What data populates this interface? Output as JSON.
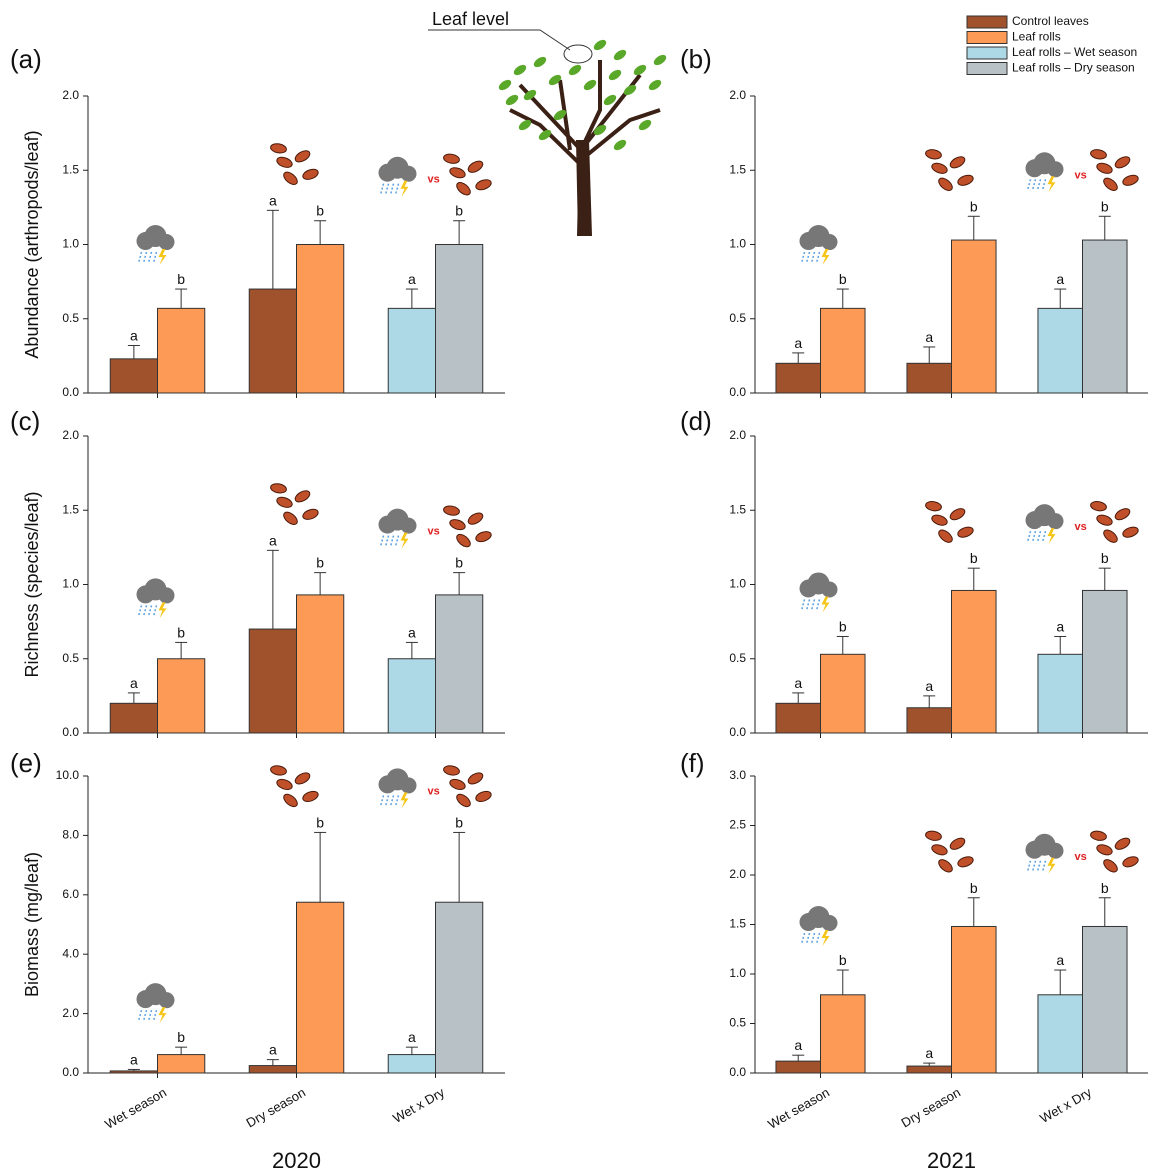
{
  "figure_annotation": "Leaf level",
  "comparison_text": "vs",
  "legend": [
    {
      "name": "Control leaves",
      "color": "#a0522d"
    },
    {
      "name": "Leaf rolls",
      "color": "#fd9a55"
    },
    {
      "name": "Leaf rolls – Wet season",
      "color": "#add8e6"
    },
    {
      "name": "Leaf rolls – Dry season",
      "color": "#b8c2c6"
    }
  ],
  "chart_data": [
    {
      "type": "bar",
      "panel_label": "(a)",
      "ylabel": "Abundance (arthropods/leaf)",
      "categories": [
        null,
        null,
        null
      ],
      "ylim": [
        0,
        2
      ],
      "yticks": [
        {
          "value": 0,
          "label": "0.0"
        },
        {
          "value": 0.5,
          "label": "0.5"
        },
        {
          "value": 1,
          "label": "1.0"
        },
        {
          "value": 1.5,
          "label": "1.5"
        },
        {
          "value": 2,
          "label": "2.0"
        }
      ],
      "series": [
        {
          "values": [
            0.23,
            0.7,
            null
          ],
          "errors": [
            0.09,
            0.53,
            null
          ],
          "letters": [
            "a",
            "a",
            null
          ]
        },
        {
          "values": [
            0.57,
            1.0,
            null
          ],
          "errors": [
            0.13,
            0.16,
            null
          ],
          "letters": [
            "b",
            "b",
            null
          ]
        },
        {
          "values": [
            null,
            null,
            0.57
          ],
          "errors": [
            null,
            null,
            0.13
          ],
          "letters": [
            null,
            null,
            "a"
          ]
        },
        {
          "values": [
            null,
            null,
            1.0
          ],
          "errors": [
            null,
            null,
            0.16
          ],
          "letters": [
            null,
            null,
            "b"
          ]
        }
      ]
    },
    {
      "type": "bar",
      "panel_label": "(b)",
      "categories": [
        null,
        null,
        null
      ],
      "ylim": [
        0,
        2
      ],
      "yticks": [
        {
          "value": 0,
          "label": "0.0"
        },
        {
          "value": 0.5,
          "label": "0.5"
        },
        {
          "value": 1,
          "label": "1.0"
        },
        {
          "value": 1.5,
          "label": "1.5"
        },
        {
          "value": 2,
          "label": "2.0"
        }
      ],
      "series": [
        {
          "values": [
            0.2,
            0.2,
            null
          ],
          "errors": [
            0.07,
            0.11,
            null
          ],
          "letters": [
            "a",
            "a",
            null
          ]
        },
        {
          "values": [
            0.57,
            1.03,
            null
          ],
          "errors": [
            0.13,
            0.16,
            null
          ],
          "letters": [
            "b",
            "b",
            null
          ]
        },
        {
          "values": [
            null,
            null,
            0.57
          ],
          "errors": [
            null,
            null,
            0.13
          ],
          "letters": [
            null,
            null,
            "a"
          ]
        },
        {
          "values": [
            null,
            null,
            1.03
          ],
          "errors": [
            null,
            null,
            0.16
          ],
          "letters": [
            null,
            null,
            "b"
          ]
        }
      ]
    },
    {
      "type": "bar",
      "panel_label": "(c)",
      "ylabel": "Richness (species/leaf)",
      "categories": [
        null,
        null,
        null
      ],
      "ylim": [
        0,
        2
      ],
      "yticks": [
        {
          "value": 0,
          "label": "0.0"
        },
        {
          "value": 0.5,
          "label": "0.5"
        },
        {
          "value": 1,
          "label": "1.0"
        },
        {
          "value": 1.5,
          "label": "1.5"
        },
        {
          "value": 2,
          "label": "2.0"
        }
      ],
      "series": [
        {
          "values": [
            0.2,
            0.7,
            null
          ],
          "errors": [
            0.07,
            0.53,
            null
          ],
          "letters": [
            "a",
            "a",
            null
          ]
        },
        {
          "values": [
            0.5,
            0.93,
            null
          ],
          "errors": [
            0.11,
            0.15,
            null
          ],
          "letters": [
            "b",
            "b",
            null
          ]
        },
        {
          "values": [
            null,
            null,
            0.5
          ],
          "errors": [
            null,
            null,
            0.11
          ],
          "letters": [
            null,
            null,
            "a"
          ]
        },
        {
          "values": [
            null,
            null,
            0.93
          ],
          "errors": [
            null,
            null,
            0.15
          ],
          "letters": [
            null,
            null,
            "b"
          ]
        }
      ]
    },
    {
      "type": "bar",
      "panel_label": "(d)",
      "categories": [
        null,
        null,
        null
      ],
      "ylim": [
        0,
        2
      ],
      "yticks": [
        {
          "value": 0,
          "label": "0.0"
        },
        {
          "value": 0.5,
          "label": "0.5"
        },
        {
          "value": 1,
          "label": "1.0"
        },
        {
          "value": 1.5,
          "label": "1.5"
        },
        {
          "value": 2,
          "label": "2.0"
        }
      ],
      "series": [
        {
          "values": [
            0.2,
            0.17,
            null
          ],
          "errors": [
            0.07,
            0.08,
            null
          ],
          "letters": [
            "a",
            "a",
            null
          ]
        },
        {
          "values": [
            0.53,
            0.96,
            null
          ],
          "errors": [
            0.12,
            0.15,
            null
          ],
          "letters": [
            "b",
            "b",
            null
          ]
        },
        {
          "values": [
            null,
            null,
            0.53
          ],
          "errors": [
            null,
            null,
            0.12
          ],
          "letters": [
            null,
            null,
            "a"
          ]
        },
        {
          "values": [
            null,
            null,
            0.96
          ],
          "errors": [
            null,
            null,
            0.15
          ],
          "letters": [
            null,
            null,
            "b"
          ]
        }
      ]
    },
    {
      "type": "bar",
      "panel_label": "(e)",
      "ylabel": "Biomass (mg/leaf)",
      "xlabel": "2020",
      "categories": [
        "Wet season",
        "Dry season",
        "Wet x Dry"
      ],
      "ylim": [
        0,
        10
      ],
      "yticks": [
        {
          "value": 0,
          "label": "0.0"
        },
        {
          "value": 2,
          "label": "2.0"
        },
        {
          "value": 4,
          "label": "4.0"
        },
        {
          "value": 6,
          "label": "6.0"
        },
        {
          "value": 8,
          "label": "8.0"
        },
        {
          "value": 10,
          "label": "10.0"
        }
      ],
      "series": [
        {
          "values": [
            0.07,
            0.25,
            null
          ],
          "errors": [
            0.05,
            0.2,
            null
          ],
          "letters": [
            "a",
            "a",
            null
          ]
        },
        {
          "values": [
            0.62,
            5.75,
            null
          ],
          "errors": [
            0.25,
            2.35,
            null
          ],
          "letters": [
            "b",
            "b",
            null
          ]
        },
        {
          "values": [
            null,
            null,
            0.62
          ],
          "errors": [
            null,
            null,
            0.25
          ],
          "letters": [
            null,
            null,
            "a"
          ]
        },
        {
          "values": [
            null,
            null,
            5.75
          ],
          "errors": [
            null,
            null,
            2.35
          ],
          "letters": [
            null,
            null,
            "b"
          ]
        }
      ]
    },
    {
      "type": "bar",
      "panel_label": "(f)",
      "xlabel": "2021",
      "categories": [
        "Wet season",
        "Dry season",
        "Wet x Dry"
      ],
      "ylim": [
        0,
        3
      ],
      "yticks": [
        {
          "value": 0,
          "label": "0.0"
        },
        {
          "value": 0.5,
          "label": "0.5"
        },
        {
          "value": 1,
          "label": "1.0"
        },
        {
          "value": 1.5,
          "label": "1.5"
        },
        {
          "value": 2,
          "label": "2.0"
        },
        {
          "value": 2.5,
          "label": "2.5"
        },
        {
          "value": 3,
          "label": "3.0"
        }
      ],
      "series": [
        {
          "values": [
            0.12,
            0.07,
            null
          ],
          "errors": [
            0.06,
            0.03,
            null
          ],
          "letters": [
            "a",
            "a",
            null
          ]
        },
        {
          "values": [
            0.79,
            1.48,
            null
          ],
          "errors": [
            0.25,
            0.29,
            null
          ],
          "letters": [
            "b",
            "b",
            null
          ]
        },
        {
          "values": [
            null,
            null,
            0.79
          ],
          "errors": [
            null,
            null,
            0.25
          ],
          "letters": [
            null,
            null,
            "a"
          ]
        },
        {
          "values": [
            null,
            null,
            1.48
          ],
          "errors": [
            null,
            null,
            0.29
          ],
          "letters": [
            null,
            null,
            "b"
          ]
        }
      ]
    }
  ]
}
